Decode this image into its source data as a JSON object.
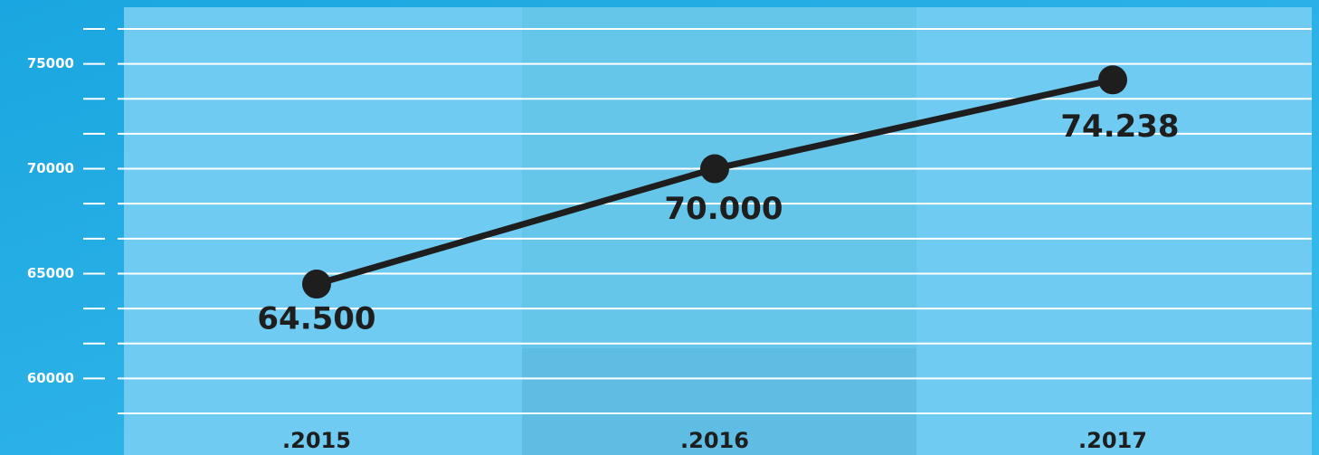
{
  "chart_data": {
    "type": "line",
    "categories": [
      ".2015",
      ".2016",
      ".2017"
    ],
    "series": [
      {
        "color": "#1e1e1e",
        "values": [
          64500,
          70000,
          74238
        ],
        "value_labels": [
          "64.500",
          "70.000",
          "74.238"
        ]
      }
    ],
    "ylim": [
      58333.33,
      76666.67
    ],
    "yticks": [
      60000,
      65000,
      70000,
      75000
    ],
    "minor_yticks": [
      61666.67,
      63333.33,
      66666.67,
      68333.33,
      71666.67,
      73333.33,
      76666.67
    ],
    "grid": true
  }
}
